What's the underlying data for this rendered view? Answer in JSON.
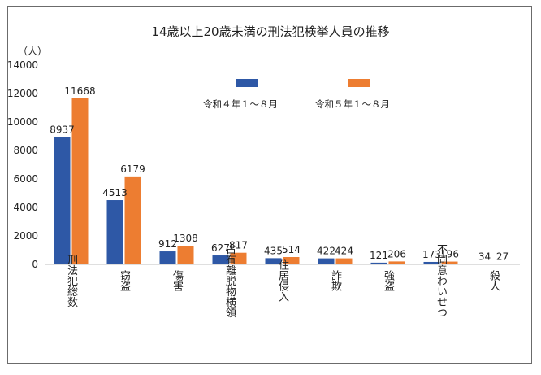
{
  "chart_data": {
    "type": "bar",
    "title": "14歳以上20歳未満の刑法犯検挙人員の推移",
    "ylabel": "（人）",
    "xlabel": "",
    "ylim": [
      0,
      14000
    ],
    "yticks": [
      0,
      2000,
      4000,
      6000,
      8000,
      10000,
      12000,
      14000
    ],
    "ytick_labels": [
      "0",
      "2000",
      "4000",
      "6000",
      "8000",
      "10000",
      "12000",
      "14000"
    ],
    "grid": false,
    "legend_position": "top",
    "categories": [
      "刑法犯総数",
      "窃盗",
      "傷害",
      "占有離脱物横領",
      "住居侵入",
      "詐欺",
      "強盗",
      "不同意わいせつ",
      "殺人"
    ],
    "series": [
      {
        "name": "令和４年１～８月",
        "color": "#2e58a6",
        "values": [
          8937,
          4513,
          912,
          627,
          435,
          422,
          121,
          173,
          34
        ]
      },
      {
        "name": "令和５年１～８月",
        "color": "#ed7d31",
        "values": [
          11668,
          6179,
          1308,
          817,
          514,
          424,
          206,
          196,
          27
        ]
      }
    ]
  }
}
